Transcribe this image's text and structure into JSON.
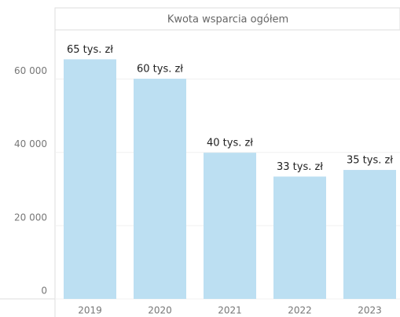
{
  "chart_data": {
    "type": "bar",
    "title": "Kwota wsparcia ogółem",
    "categories": [
      "2019",
      "2020",
      "2021",
      "2022",
      "2023"
    ],
    "values": [
      65400,
      60100,
      39900,
      33400,
      35200
    ],
    "value_labels": [
      "65 tys. zł",
      "60 tys. zł",
      "40 tys. zł",
      "33 tys. zł",
      "35 tys. zł"
    ],
    "color": "#bcdff2",
    "ylim": [
      0,
      73000
    ],
    "yticks": [
      0,
      {
        "value": 20000,
        "label": "20 000"
      },
      {
        "value": 40000,
        "label": "40 000"
      },
      {
        "value": 60000,
        "label": "60 000"
      }
    ],
    "grid": true
  }
}
